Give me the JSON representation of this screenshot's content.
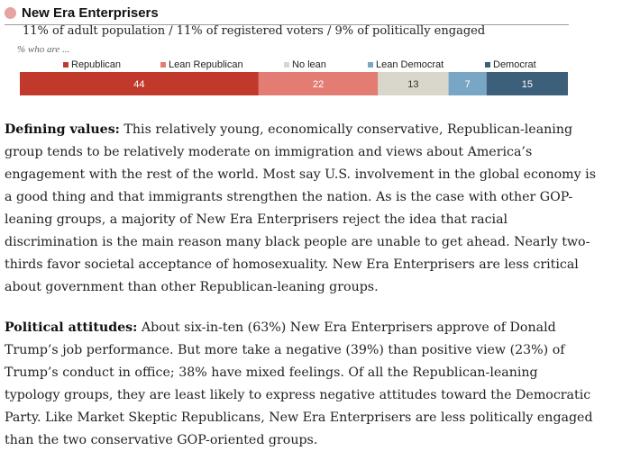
{
  "header": {
    "title": "New Era Enterprisers",
    "subtitle": "11% of adult population / 11% of registered voters / 9% of politically engaged",
    "who_label": "% who are ..."
  },
  "colors": {
    "dot": "#e8a2a0",
    "republican": "#c0392b",
    "lean_republican": "#e37d73",
    "no_lean": "#d9d6cb",
    "lean_democrat": "#7aa6c6",
    "democrat": "#3c5f7a"
  },
  "chart_data": {
    "type": "bar",
    "orientation": "horizontal-stacked",
    "categories": [
      "Republican",
      "Lean Republican",
      "No lean",
      "Lean Democrat",
      "Democrat"
    ],
    "values": [
      44,
      22,
      13,
      7,
      15
    ],
    "colors": [
      "#c0392b",
      "#e37d73",
      "#d9d6cb",
      "#7aa6c6",
      "#3c5f7a"
    ],
    "legend_position": "top"
  },
  "paragraphs": [
    {
      "heading": "Defining values:",
      "lines": [
        " This relatively young, economically conservative, Republican-leaning",
        "group tends to be relatively moderate on immigration and views about America’s",
        "engagement with the rest of the world. Most say U.S. involvement in the global economy is",
        "a good thing and that immigrants strengthen the nation. As is the case with other GOP-",
        "leaning groups, a majority of New Era Enterprisers reject the idea that racial",
        "discrimination is the main reason many black people are unable to get ahead. Nearly two-",
        "thirds favor societal acceptance of homosexuality. New Era Enterprisers are less critical",
        "about government than other Republican-leaning groups."
      ]
    },
    {
      "heading": "Political attitudes:",
      "lines": [
        " About six-in-ten (63%) New Era Enterprisers approve of Donald",
        "Trump’s job performance. But more take a negative (39%) than positive view (23%) of",
        "Trump’s conduct in office; 38% have mixed feelings. Of all the Republican-leaning",
        "typology groups, they are least likely to express negative attitudes toward the Democratic",
        "Party. Like Market Skeptic Republicans, New Era Enterprisers are less politically engaged",
        "than the two conservative GOP-oriented groups."
      ]
    }
  ]
}
